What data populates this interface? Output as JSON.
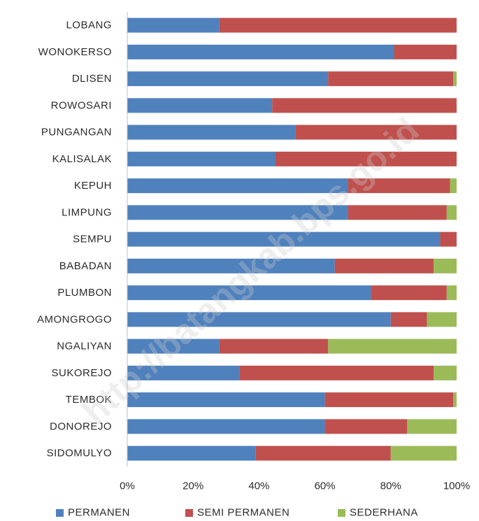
{
  "chart_data": {
    "type": "bar",
    "orientation": "horizontal",
    "stacked": "percent",
    "categories": [
      "LOBANG",
      "WONOKERSO",
      "DLISEN",
      "ROWOSARI",
      "PUNGANGAN",
      "KALISALAK",
      "KEPUH",
      "LIMPUNG",
      "SEMPU",
      "BABADAN",
      "PLUMBON",
      "AMONGROGO",
      "NGALIYAN",
      "SUKOREJO",
      "TEMBOK",
      "DONOREJO",
      "SIDOMULYO"
    ],
    "series": [
      {
        "name": "PERMANEN",
        "color": "#4f81bd",
        "values": [
          28,
          81,
          61,
          44,
          51,
          45,
          67,
          67,
          95,
          63,
          74,
          80,
          28,
          34,
          60,
          60,
          39
        ]
      },
      {
        "name": "SEMI PERMANEN",
        "color": "#c0504d",
        "values": [
          72,
          19,
          38,
          56,
          49,
          55,
          31,
          30,
          5,
          30,
          23,
          11,
          33,
          59,
          39,
          25,
          41
        ]
      },
      {
        "name": "SEDERHANA",
        "color": "#9bbb59",
        "values": [
          0,
          0,
          1,
          0,
          0,
          0,
          2,
          3,
          0,
          7,
          3,
          9,
          39,
          7,
          1,
          15,
          20
        ]
      }
    ],
    "x_ticks": [
      "0%",
      "20%",
      "40%",
      "60%",
      "80%",
      "100%"
    ],
    "xlim": [
      0,
      100
    ],
    "grid": false,
    "legend_position": "bottom",
    "watermark": "http://batangkab.bps.go.id"
  }
}
